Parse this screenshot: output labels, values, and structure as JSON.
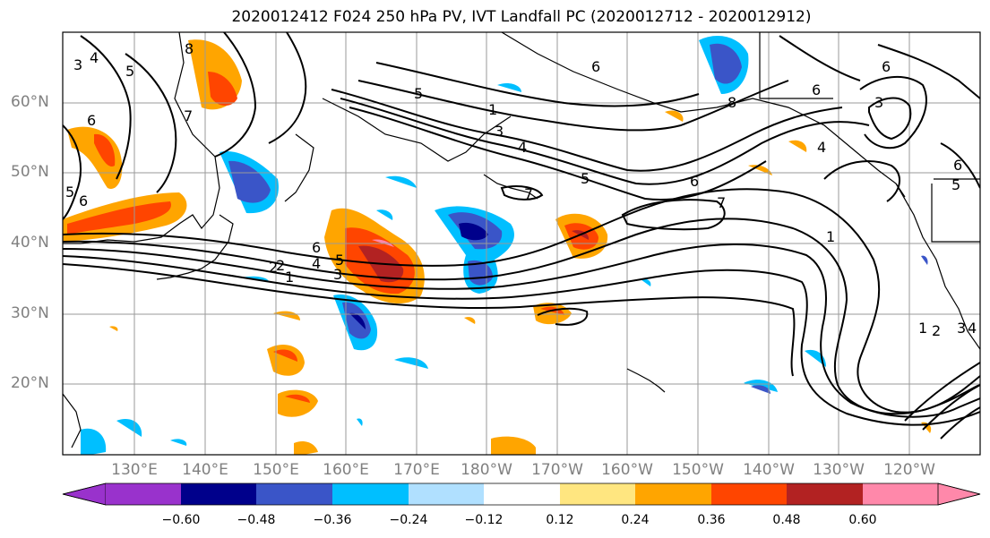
{
  "title": "2020012412 F024 250 hPa PV, IVT Landfall PC (2020012712 - 2020012912)",
  "map": {
    "lat_labels": [
      "60°N",
      "50°N",
      "40°N",
      "30°N",
      "20°N"
    ],
    "lon_labels": [
      "130°E",
      "140°E",
      "150°E",
      "160°E",
      "170°E",
      "180°W",
      "170°W",
      "160°W",
      "150°W",
      "140°W",
      "130°W",
      "120°W"
    ],
    "contour_labels": [
      "3",
      "4",
      "5",
      "6",
      "7",
      "8",
      "6",
      "5",
      "6",
      "4",
      "2",
      "1",
      "3",
      "5",
      "2",
      "1",
      "3",
      "4",
      "5",
      "6",
      "7",
      "5",
      "6",
      "7",
      "6",
      "1",
      "8",
      "6",
      "3",
      "4",
      "6",
      "5",
      "4",
      "3",
      "2",
      "1"
    ]
  },
  "colorbar": {
    "ticks": [
      "−0.60",
      "−0.48",
      "−0.36",
      "−0.24",
      "−0.12",
      "0.12",
      "0.24",
      "0.36",
      "0.48",
      "0.60"
    ],
    "colors": [
      "#9932cc",
      "#00008b",
      "#3a55c8",
      "#00bfff",
      "#b0e0ff",
      "#ffffff",
      "#ffe680",
      "#ffa500",
      "#ff4500",
      "#b22222",
      "#ff88aa"
    ]
  }
}
